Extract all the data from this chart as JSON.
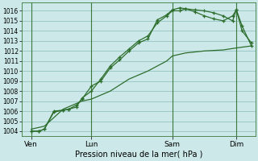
{
  "xlabel": "Pression niveau de la mer( hPa )",
  "bg_color": "#cce8e8",
  "grid_color": "#88bbbb",
  "line_color": "#2d6e2d",
  "vline_color": "#3a7a3a",
  "ylim": [
    1003.5,
    1016.8
  ],
  "yticks": [
    1004,
    1005,
    1006,
    1007,
    1008,
    1009,
    1010,
    1011,
    1012,
    1013,
    1014,
    1015,
    1016
  ],
  "xlim": [
    -0.2,
    12.2
  ],
  "day_labels": [
    "Ven",
    "Lun",
    "Sam",
    "Dim"
  ],
  "day_positions": [
    0.3,
    3.5,
    7.8,
    11.2
  ],
  "vline_positions": [
    0.3,
    3.5,
    7.8,
    11.2
  ],
  "series1_x": [
    0.3,
    0.7,
    1.0,
    1.5,
    2.0,
    2.3,
    2.7,
    3.0,
    3.5,
    4.0,
    4.5,
    5.0,
    5.5,
    6.0,
    6.5,
    7.0,
    7.5,
    7.8,
    8.2,
    8.5,
    9.0,
    9.5,
    10.0,
    10.5,
    11.0,
    11.2,
    11.5,
    12.0
  ],
  "series1_y": [
    1004.0,
    1004.0,
    1004.2,
    1005.9,
    1006.1,
    1006.2,
    1006.4,
    1007.3,
    1008.0,
    1009.2,
    1010.5,
    1011.4,
    1012.2,
    1013.0,
    1013.5,
    1014.8,
    1015.5,
    1016.0,
    1016.0,
    1016.2,
    1016.1,
    1016.0,
    1015.8,
    1015.5,
    1015.0,
    1016.1,
    1014.5,
    1012.5
  ],
  "series2_x": [
    0.3,
    0.7,
    1.0,
    1.5,
    2.0,
    2.3,
    2.7,
    3.0,
    3.5,
    4.0,
    4.5,
    5.0,
    5.5,
    6.0,
    6.5,
    7.0,
    7.5,
    7.8,
    8.2,
    8.5,
    9.0,
    9.5,
    10.0,
    10.5,
    11.0,
    11.2,
    11.5,
    12.0
  ],
  "series2_y": [
    1004.0,
    1004.0,
    1004.2,
    1006.0,
    1006.1,
    1006.2,
    1006.6,
    1007.2,
    1008.5,
    1009.0,
    1010.3,
    1011.1,
    1012.0,
    1012.8,
    1013.2,
    1015.1,
    1015.6,
    1016.1,
    1016.3,
    1016.2,
    1015.9,
    1015.5,
    1015.2,
    1015.0,
    1015.5,
    1016.1,
    1014.0,
    1012.8
  ],
  "series3_x": [
    0.3,
    1.0,
    2.0,
    3.0,
    3.5,
    4.5,
    5.5,
    6.5,
    7.5,
    7.8,
    8.5,
    9.5,
    10.5,
    11.2,
    12.0
  ],
  "series3_y": [
    1004.2,
    1004.5,
    1006.2,
    1007.0,
    1007.2,
    1008.0,
    1009.2,
    1010.0,
    1011.0,
    1011.5,
    1011.8,
    1012.0,
    1012.1,
    1012.3,
    1012.5
  ],
  "xlabel_fontsize": 7,
  "ytick_fontsize": 5.5,
  "xtick_fontsize": 6.5
}
